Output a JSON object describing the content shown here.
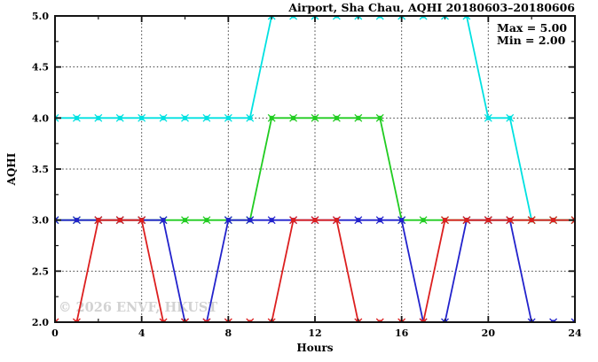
{
  "title": "Airport, Sha Chau, AQHI 20180603–20180606",
  "legend": {
    "max_label": "Max = 5.00",
    "min_label": "Min = 2.00"
  },
  "watermark": "© 2026 ENVF, HKUST",
  "chart_data": {
    "type": "line",
    "title": "Airport, Sha Chau, AQHI 20180603–20180606",
    "xlabel": "Hours",
    "ylabel": "AQHI",
    "xlim": [
      0,
      24
    ],
    "ylim": [
      2.0,
      5.0
    ],
    "grid": true,
    "legend_position": "top-right",
    "x_major_ticks": [
      0,
      4,
      8,
      12,
      16,
      20,
      24
    ],
    "x_tick_labels": [
      "0",
      "4",
      "8",
      "12",
      "16",
      "20",
      "24"
    ],
    "x_minor_ticks": [
      2,
      6,
      10,
      14,
      18,
      22
    ],
    "y_major_ticks": [
      2.0,
      2.5,
      3.0,
      3.5,
      4.0,
      4.5,
      5.0
    ],
    "y_tick_labels": [
      "2.0",
      "2.5",
      "3.0",
      "3.5",
      "4.0",
      "4.5",
      "5.0"
    ],
    "y_minor_ticks": [
      2.25,
      2.75,
      3.25,
      3.75,
      4.25,
      4.75
    ],
    "x_gridlines": [
      4,
      8,
      12,
      16,
      20
    ],
    "y_gridlines": [
      2.5,
      3.0,
      3.5,
      4.0,
      4.5
    ],
    "x": [
      0,
      1,
      2,
      3,
      4,
      5,
      6,
      7,
      8,
      9,
      10,
      11,
      12,
      13,
      14,
      15,
      16,
      17,
      18,
      19,
      20,
      21,
      22,
      23,
      24
    ],
    "series": [
      {
        "name": "cyan",
        "color": "#00E1E1",
        "values": [
          4,
          4,
          4,
          4,
          4,
          4,
          4,
          4,
          4,
          4,
          5,
          5,
          5,
          5,
          5,
          5,
          5,
          5,
          5,
          5,
          4,
          4,
          3,
          3,
          3
        ]
      },
      {
        "name": "green",
        "color": "#21CC21",
        "values": [
          3,
          3,
          3,
          3,
          3,
          3,
          3,
          3,
          3,
          3,
          4,
          4,
          4,
          4,
          4,
          4,
          3,
          3,
          3,
          3,
          3,
          3,
          3,
          3,
          3
        ]
      },
      {
        "name": "blue",
        "color": "#2222CC",
        "values": [
          3,
          3,
          3,
          3,
          3,
          3,
          2,
          2,
          3,
          3,
          3,
          3,
          3,
          3,
          3,
          3,
          3,
          2,
          2,
          3,
          3,
          3,
          2,
          2,
          2
        ]
      },
      {
        "name": "red",
        "color": "#DC1F1F",
        "values": [
          2,
          2,
          3,
          3,
          3,
          2,
          2,
          2,
          2,
          2,
          2,
          3,
          3,
          3,
          2,
          2,
          2,
          2,
          3,
          3,
          3,
          3,
          3,
          3,
          3
        ]
      }
    ],
    "stats": {
      "max": 5.0,
      "min": 2.0
    }
  }
}
